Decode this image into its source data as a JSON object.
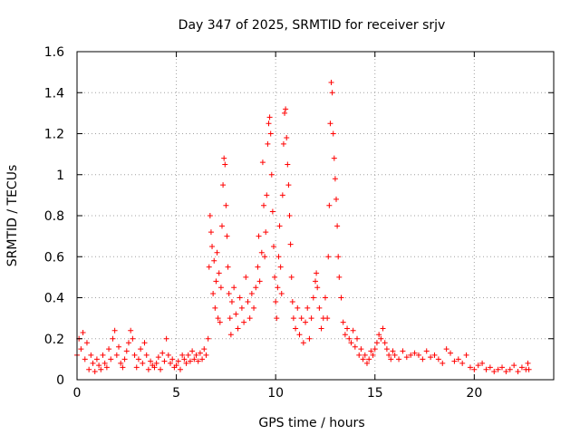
{
  "chart_data": {
    "type": "scatter",
    "title": "Day 347 of 2025, SRMTID for receiver srjv",
    "xlabel": "GPS time / hours",
    "ylabel": "SRMTID / TECUs",
    "xlim": [
      0,
      24
    ],
    "ylim": [
      0,
      1.6
    ],
    "xticks": [
      0,
      5,
      10,
      15,
      20
    ],
    "xtick_labels": [
      "0",
      "5",
      "10",
      "15",
      "20"
    ],
    "yticks": [
      0,
      0.2,
      0.4,
      0.6,
      0.8,
      1.0,
      1.2,
      1.4,
      1.6
    ],
    "ytick_labels": [
      "0",
      "0.2",
      "0.4",
      "0.6",
      "0.8",
      "1",
      "1.2",
      "1.4",
      "1.6"
    ],
    "grid": true,
    "marker": "+",
    "color": "#ff0000",
    "series": [
      {
        "name": "srjv",
        "points": [
          [
            0.0,
            0.12
          ],
          [
            0.1,
            0.2
          ],
          [
            0.2,
            0.15
          ],
          [
            0.3,
            0.23
          ],
          [
            0.4,
            0.1
          ],
          [
            0.5,
            0.18
          ],
          [
            0.6,
            0.05
          ],
          [
            0.7,
            0.12
          ],
          [
            0.8,
            0.08
          ],
          [
            0.9,
            0.04
          ],
          [
            1.0,
            0.1
          ],
          [
            1.1,
            0.07
          ],
          [
            1.2,
            0.05
          ],
          [
            1.3,
            0.12
          ],
          [
            1.4,
            0.08
          ],
          [
            1.5,
            0.06
          ],
          [
            1.6,
            0.15
          ],
          [
            1.7,
            0.1
          ],
          [
            1.8,
            0.2
          ],
          [
            1.9,
            0.24
          ],
          [
            2.0,
            0.12
          ],
          [
            2.1,
            0.16
          ],
          [
            2.2,
            0.08
          ],
          [
            2.3,
            0.06
          ],
          [
            2.4,
            0.1
          ],
          [
            2.5,
            0.14
          ],
          [
            2.6,
            0.18
          ],
          [
            2.7,
            0.24
          ],
          [
            2.8,
            0.2
          ],
          [
            2.9,
            0.12
          ],
          [
            3.0,
            0.06
          ],
          [
            3.1,
            0.1
          ],
          [
            3.2,
            0.15
          ],
          [
            3.3,
            0.08
          ],
          [
            3.4,
            0.18
          ],
          [
            3.5,
            0.12
          ],
          [
            3.6,
            0.05
          ],
          [
            3.7,
            0.09
          ],
          [
            3.8,
            0.07
          ],
          [
            3.9,
            0.06
          ],
          [
            4.0,
            0.08
          ],
          [
            4.1,
            0.11
          ],
          [
            4.2,
            0.05
          ],
          [
            4.3,
            0.13
          ],
          [
            4.4,
            0.09
          ],
          [
            4.5,
            0.2
          ],
          [
            4.6,
            0.12
          ],
          [
            4.7,
            0.08
          ],
          [
            4.8,
            0.1
          ],
          [
            4.9,
            0.06
          ],
          [
            5.0,
            0.07
          ],
          [
            5.1,
            0.09
          ],
          [
            5.2,
            0.05
          ],
          [
            5.3,
            0.12
          ],
          [
            5.4,
            0.1
          ],
          [
            5.5,
            0.08
          ],
          [
            5.6,
            0.12
          ],
          [
            5.7,
            0.09
          ],
          [
            5.8,
            0.14
          ],
          [
            5.9,
            0.1
          ],
          [
            6.0,
            0.12
          ],
          [
            6.1,
            0.09
          ],
          [
            6.2,
            0.13
          ],
          [
            6.3,
            0.1
          ],
          [
            6.4,
            0.15
          ],
          [
            6.5,
            0.12
          ],
          [
            6.6,
            0.2
          ],
          [
            6.65,
            0.55
          ],
          [
            6.7,
            0.8
          ],
          [
            6.75,
            0.72
          ],
          [
            6.8,
            0.65
          ],
          [
            6.85,
            0.42
          ],
          [
            6.9,
            0.58
          ],
          [
            6.95,
            0.35
          ],
          [
            7.0,
            0.48
          ],
          [
            7.05,
            0.62
          ],
          [
            7.1,
            0.3
          ],
          [
            7.15,
            0.52
          ],
          [
            7.2,
            0.28
          ],
          [
            7.25,
            0.45
          ],
          [
            7.3,
            0.75
          ],
          [
            7.35,
            0.95
          ],
          [
            7.4,
            1.08
          ],
          [
            7.45,
            1.05
          ],
          [
            7.5,
            0.85
          ],
          [
            7.55,
            0.7
          ],
          [
            7.6,
            0.55
          ],
          [
            7.65,
            0.42
          ],
          [
            7.7,
            0.3
          ],
          [
            7.75,
            0.22
          ],
          [
            7.8,
            0.38
          ],
          [
            7.9,
            0.45
          ],
          [
            8.0,
            0.32
          ],
          [
            8.1,
            0.25
          ],
          [
            8.2,
            0.4
          ],
          [
            8.3,
            0.35
          ],
          [
            8.4,
            0.28
          ],
          [
            8.5,
            0.5
          ],
          [
            8.6,
            0.38
          ],
          [
            8.7,
            0.3
          ],
          [
            8.8,
            0.42
          ],
          [
            8.9,
            0.35
          ],
          [
            9.0,
            0.45
          ],
          [
            9.1,
            0.55
          ],
          [
            9.15,
            0.7
          ],
          [
            9.2,
            0.48
          ],
          [
            9.3,
            0.62
          ],
          [
            9.35,
            1.06
          ],
          [
            9.4,
            0.85
          ],
          [
            9.45,
            0.6
          ],
          [
            9.5,
            0.72
          ],
          [
            9.55,
            0.9
          ],
          [
            9.6,
            1.15
          ],
          [
            9.65,
            1.25
          ],
          [
            9.7,
            1.28
          ],
          [
            9.75,
            1.2
          ],
          [
            9.8,
            1.0
          ],
          [
            9.85,
            0.82
          ],
          [
            9.9,
            0.65
          ],
          [
            9.95,
            0.5
          ],
          [
            10.0,
            0.38
          ],
          [
            10.05,
            0.3
          ],
          [
            10.1,
            0.45
          ],
          [
            10.15,
            0.6
          ],
          [
            10.2,
            0.75
          ],
          [
            10.25,
            0.55
          ],
          [
            10.3,
            0.42
          ],
          [
            10.35,
            0.9
          ],
          [
            10.4,
            1.15
          ],
          [
            10.45,
            1.3
          ],
          [
            10.5,
            1.32
          ],
          [
            10.55,
            1.18
          ],
          [
            10.6,
            1.05
          ],
          [
            10.65,
            0.95
          ],
          [
            10.7,
            0.8
          ],
          [
            10.75,
            0.66
          ],
          [
            10.8,
            0.5
          ],
          [
            10.85,
            0.38
          ],
          [
            10.9,
            0.3
          ],
          [
            11.0,
            0.25
          ],
          [
            11.1,
            0.35
          ],
          [
            11.2,
            0.22
          ],
          [
            11.3,
            0.3
          ],
          [
            11.4,
            0.18
          ],
          [
            11.5,
            0.28
          ],
          [
            11.6,
            0.35
          ],
          [
            11.7,
            0.2
          ],
          [
            11.8,
            0.3
          ],
          [
            11.9,
            0.4
          ],
          [
            12.0,
            0.48
          ],
          [
            12.05,
            0.52
          ],
          [
            12.1,
            0.45
          ],
          [
            12.2,
            0.35
          ],
          [
            12.3,
            0.25
          ],
          [
            12.4,
            0.3
          ],
          [
            12.5,
            0.4
          ],
          [
            12.6,
            0.3
          ],
          [
            12.65,
            0.6
          ],
          [
            12.7,
            0.85
          ],
          [
            12.75,
            1.25
          ],
          [
            12.8,
            1.45
          ],
          [
            12.85,
            1.4
          ],
          [
            12.9,
            1.2
          ],
          [
            12.95,
            1.08
          ],
          [
            13.0,
            0.98
          ],
          [
            13.05,
            0.88
          ],
          [
            13.1,
            0.75
          ],
          [
            13.15,
            0.6
          ],
          [
            13.2,
            0.5
          ],
          [
            13.3,
            0.4
          ],
          [
            13.4,
            0.28
          ],
          [
            13.5,
            0.22
          ],
          [
            13.6,
            0.25
          ],
          [
            13.7,
            0.2
          ],
          [
            13.8,
            0.18
          ],
          [
            13.9,
            0.24
          ],
          [
            14.0,
            0.16
          ],
          [
            14.1,
            0.2
          ],
          [
            14.2,
            0.12
          ],
          [
            14.3,
            0.15
          ],
          [
            14.4,
            0.1
          ],
          [
            14.5,
            0.12
          ],
          [
            14.6,
            0.08
          ],
          [
            14.7,
            0.1
          ],
          [
            14.8,
            0.14
          ],
          [
            14.9,
            0.12
          ],
          [
            15.0,
            0.15
          ],
          [
            15.1,
            0.18
          ],
          [
            15.2,
            0.22
          ],
          [
            15.3,
            0.2
          ],
          [
            15.4,
            0.25
          ],
          [
            15.5,
            0.18
          ],
          [
            15.6,
            0.15
          ],
          [
            15.7,
            0.12
          ],
          [
            15.8,
            0.1
          ],
          [
            15.9,
            0.14
          ],
          [
            16.0,
            0.12
          ],
          [
            16.2,
            0.1
          ],
          [
            16.4,
            0.14
          ],
          [
            16.6,
            0.11
          ],
          [
            16.8,
            0.12
          ],
          [
            17.0,
            0.13
          ],
          [
            17.2,
            0.12
          ],
          [
            17.4,
            0.1
          ],
          [
            17.6,
            0.14
          ],
          [
            17.8,
            0.11
          ],
          [
            18.0,
            0.12
          ],
          [
            18.2,
            0.1
          ],
          [
            18.4,
            0.08
          ],
          [
            18.6,
            0.15
          ],
          [
            18.8,
            0.13
          ],
          [
            19.0,
            0.09
          ],
          [
            19.2,
            0.1
          ],
          [
            19.4,
            0.08
          ],
          [
            19.6,
            0.12
          ],
          [
            19.8,
            0.06
          ],
          [
            20.0,
            0.05
          ],
          [
            20.2,
            0.07
          ],
          [
            20.4,
            0.08
          ],
          [
            20.6,
            0.05
          ],
          [
            20.8,
            0.06
          ],
          [
            21.0,
            0.04
          ],
          [
            21.2,
            0.05
          ],
          [
            21.4,
            0.06
          ],
          [
            21.6,
            0.04
          ],
          [
            21.8,
            0.05
          ],
          [
            22.0,
            0.07
          ],
          [
            22.2,
            0.04
          ],
          [
            22.4,
            0.06
          ],
          [
            22.6,
            0.05
          ],
          [
            22.7,
            0.08
          ],
          [
            22.75,
            0.05
          ]
        ]
      }
    ]
  }
}
